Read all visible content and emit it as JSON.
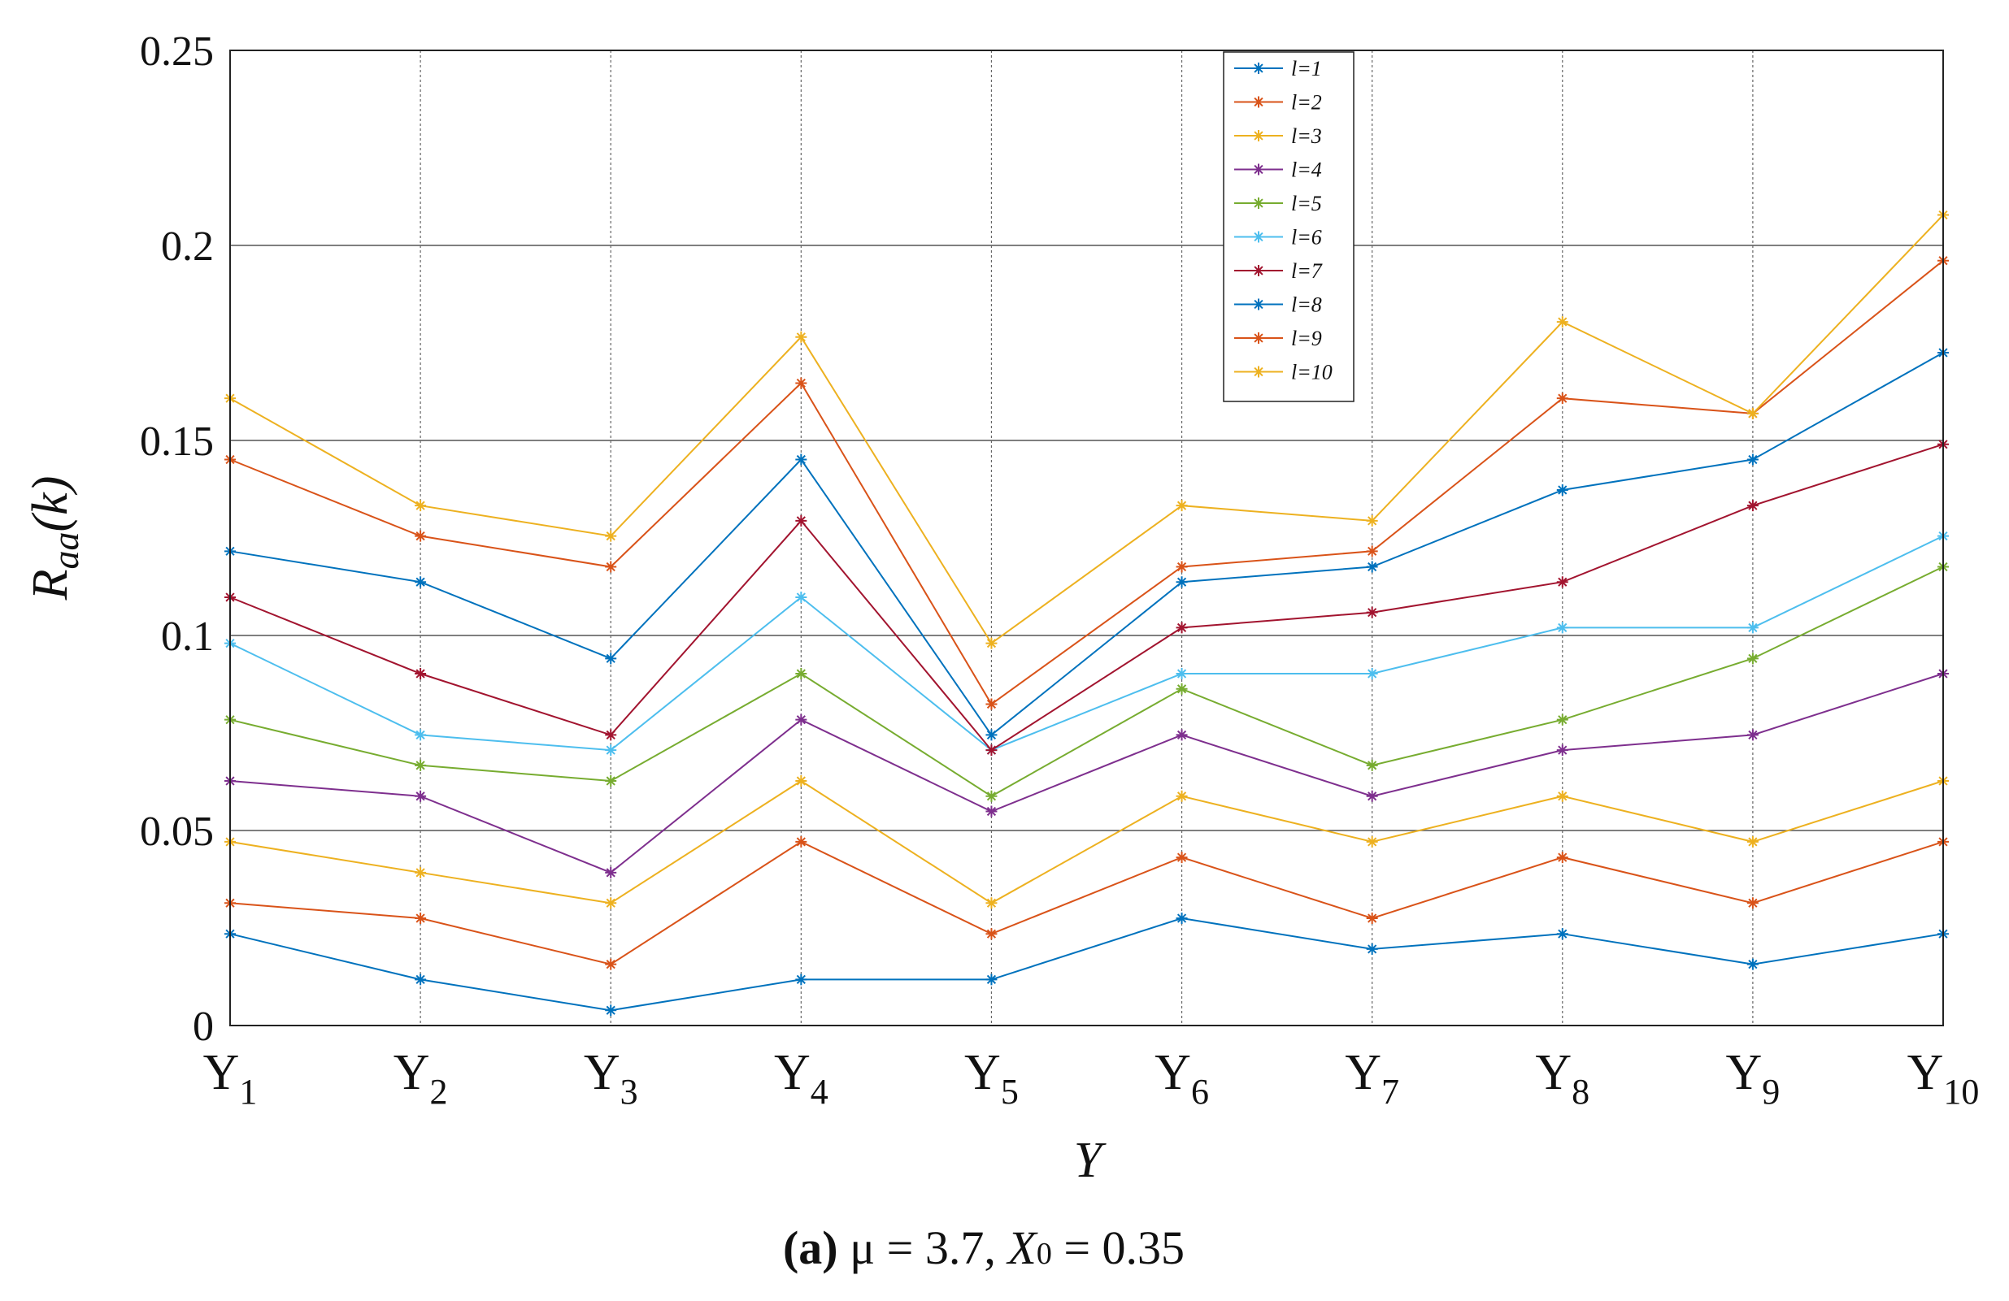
{
  "chart_data": {
    "type": "line",
    "categories": [
      {
        "base": "Y",
        "sub": "1"
      },
      {
        "base": "Y",
        "sub": "2"
      },
      {
        "base": "Y",
        "sub": "3"
      },
      {
        "base": "Y",
        "sub": "4"
      },
      {
        "base": "Y",
        "sub": "5"
      },
      {
        "base": "Y",
        "sub": "6"
      },
      {
        "base": "Y",
        "sub": "7"
      },
      {
        "base": "Y",
        "sub": "8"
      },
      {
        "base": "Y",
        "sub": "9"
      },
      {
        "base": "Y",
        "sub": "10"
      }
    ],
    "xlabel": "Y",
    "ylabel": {
      "base": "R",
      "sub": "aa",
      "suffix": "(k)"
    },
    "ylim": [
      0,
      0.25
    ],
    "yticks": [
      0,
      0.05,
      0.1,
      0.15,
      0.2,
      0.25
    ],
    "ytick_labels": [
      "0",
      "0.05",
      "0.1",
      "0.15",
      "0.2",
      "0.25"
    ],
    "grid": true,
    "legend_position": "top-center",
    "series": [
      {
        "name": "l=1",
        "color": "#0072BD",
        "values": [
          0.0235,
          0.0118,
          0.0039,
          0.0118,
          0.0118,
          0.0275,
          0.0196,
          0.0235,
          0.0157,
          0.0235
        ]
      },
      {
        "name": "l=2",
        "color": "#D95319",
        "values": [
          0.0314,
          0.0275,
          0.0157,
          0.0471,
          0.0235,
          0.0431,
          0.0275,
          0.0431,
          0.0314,
          0.0471
        ]
      },
      {
        "name": "l=3",
        "color": "#EDB120",
        "values": [
          0.0471,
          0.0392,
          0.0314,
          0.0627,
          0.0314,
          0.0588,
          0.0471,
          0.0588,
          0.0471,
          0.0627
        ]
      },
      {
        "name": "l=4",
        "color": "#7E2F8E",
        "values": [
          0.0627,
          0.0588,
          0.0392,
          0.0784,
          0.0549,
          0.0745,
          0.0588,
          0.0706,
          0.0745,
          0.0902
        ]
      },
      {
        "name": "l=5",
        "color": "#77AC30",
        "values": [
          0.0784,
          0.0667,
          0.0627,
          0.0902,
          0.0588,
          0.0863,
          0.0667,
          0.0784,
          0.0941,
          0.1176
        ]
      },
      {
        "name": "l=6",
        "color": "#4DBEEE",
        "values": [
          0.098,
          0.0745,
          0.0706,
          0.1098,
          0.0706,
          0.0902,
          0.0902,
          0.102,
          0.102,
          0.1255
        ]
      },
      {
        "name": "l=7",
        "color": "#A2142F",
        "values": [
          0.1098,
          0.0902,
          0.0745,
          0.1294,
          0.0706,
          0.102,
          0.1059,
          0.1137,
          0.1333,
          0.149
        ]
      },
      {
        "name": "l=8",
        "color": "#0072BD",
        "values": [
          0.1216,
          0.1137,
          0.0941,
          0.1451,
          0.0745,
          0.1137,
          0.1176,
          0.1373,
          0.1451,
          0.1725
        ]
      },
      {
        "name": "l=9",
        "color": "#D95319",
        "values": [
          0.1451,
          0.1255,
          0.1176,
          0.1647,
          0.0824,
          0.1176,
          0.1216,
          0.1608,
          0.1569,
          0.1961
        ]
      },
      {
        "name": "l=10",
        "color": "#EDB120",
        "values": [
          0.1608,
          0.1333,
          0.1255,
          0.1765,
          0.098,
          0.1333,
          0.1294,
          0.1804,
          0.1569,
          0.2078
        ]
      }
    ]
  },
  "caption": {
    "letter": "(a)",
    "text_1": " μ = 3.7, ",
    "var": "X",
    "sub": "0",
    "text_2": " = 0.35"
  }
}
